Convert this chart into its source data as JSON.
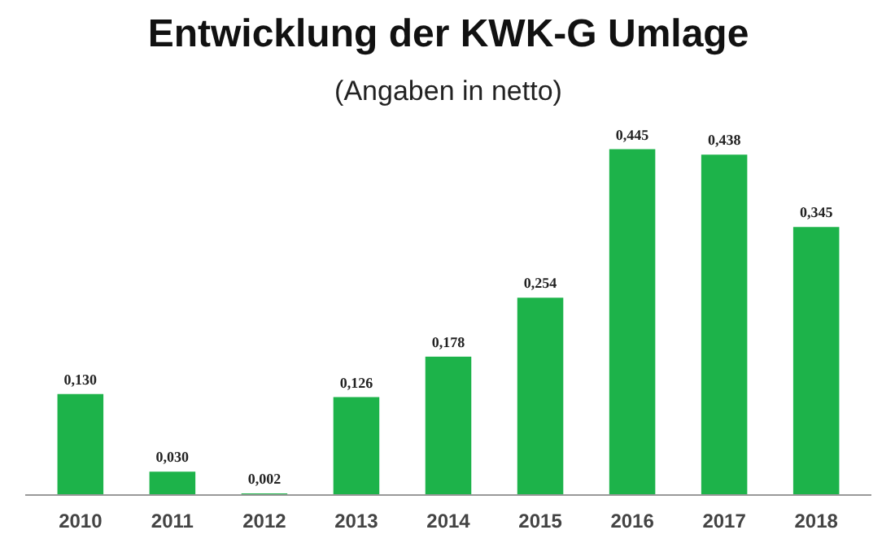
{
  "chart_data": {
    "type": "bar",
    "title": "Entwicklung der KWK-G Umlage",
    "subtitle": "(Angaben in netto)",
    "categories": [
      "2010",
      "2011",
      "2012",
      "2013",
      "2014",
      "2015",
      "2016",
      "2017",
      "2018"
    ],
    "values": [
      0.13,
      0.03,
      0.002,
      0.126,
      0.178,
      0.254,
      0.445,
      0.438,
      0.345
    ],
    "value_labels": [
      "0,130",
      "0,030",
      "0,002",
      "0,126",
      "0,178",
      "0,254",
      "0,445",
      "0,438",
      "0,345"
    ],
    "color": "#1db34a",
    "grid": false
  }
}
